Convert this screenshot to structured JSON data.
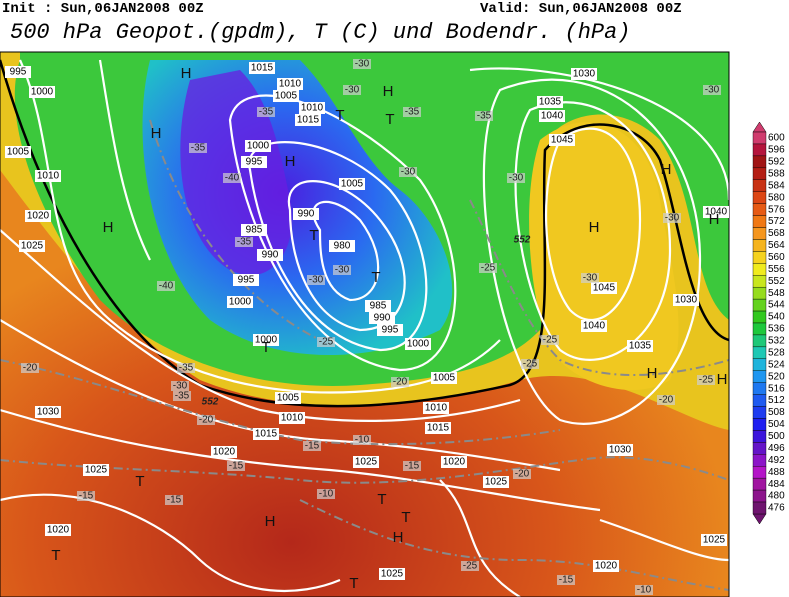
{
  "header": {
    "init": "Init : Sun,06JAN2008 00Z",
    "valid": "Valid: Sun,06JAN2008 00Z",
    "title": "500 hPa Geopot.(gpdm), T (C) und Bodendr. (hPa)"
  },
  "legend": {
    "ticks": [
      600,
      596,
      592,
      588,
      584,
      580,
      576,
      572,
      568,
      564,
      560,
      556,
      552,
      548,
      544,
      540,
      536,
      532,
      528,
      524,
      520,
      516,
      512,
      508,
      504,
      500,
      496,
      492,
      488,
      484,
      480,
      476
    ]
  },
  "map": {
    "pressure_labels": [
      "995",
      "1000",
      "1005",
      "1010",
      "1020",
      "1025",
      "1015",
      "1010",
      "1005",
      "1010",
      "1015",
      "1000",
      "995",
      "990",
      "985",
      "990",
      "980",
      "995",
      "1000",
      "985",
      "990",
      "995",
      "1000",
      "1005",
      "1005",
      "1000",
      "1005",
      "1010",
      "1015",
      "1020",
      "1025",
      "1020",
      "1025",
      "1030",
      "1025",
      "1020",
      "1025",
      "1020",
      "1025",
      "1030",
      "1035",
      "1040",
      "1045",
      "1045",
      "1040",
      "1035",
      "1030",
      "1030",
      "1010",
      "1015",
      "1040"
    ],
    "temperature_labels": [
      "-30",
      "-30",
      "-35",
      "-30",
      "-35",
      "-35",
      "-40",
      "-35",
      "-40",
      "-30",
      "-30",
      "-25",
      "-35",
      "-30",
      "-35",
      "-20",
      "-20",
      "-15",
      "-15",
      "-10",
      "-15",
      "-15",
      "-10",
      "-15",
      "-20",
      "-25",
      "-25",
      "-30",
      "-30",
      "-30",
      "-35",
      "-25",
      "-20",
      "-20",
      "-25",
      "-15",
      "-10",
      "-25",
      "-30"
    ],
    "centers": [
      "H",
      "H",
      "H",
      "T",
      "H",
      "T",
      "H",
      "T",
      "T",
      "T",
      "H",
      "H",
      "H",
      "H",
      "H",
      "T",
      "H",
      "T",
      "T",
      "T",
      "H",
      "T"
    ],
    "contour_labels": [
      "552",
      "552"
    ]
  }
}
